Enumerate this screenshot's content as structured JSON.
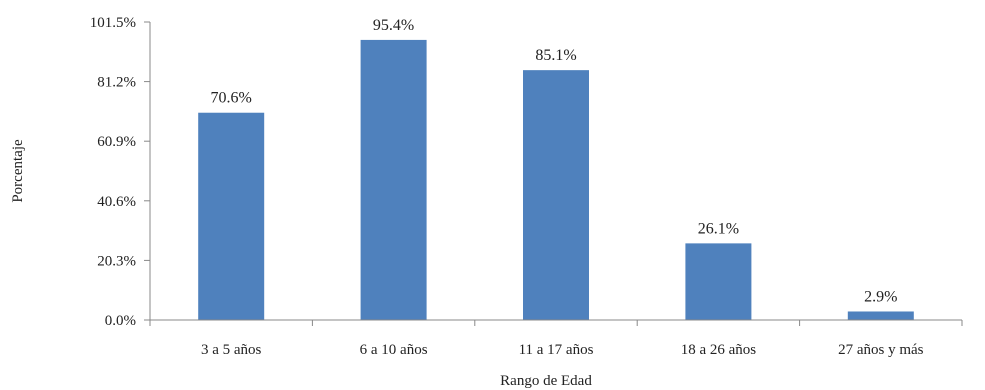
{
  "chart_data": {
    "type": "bar",
    "title": "",
    "xlabel": "Rango de Edad",
    "ylabel": "Porcentaje",
    "categories": [
      "3 a 5 años",
      "6 a 10 años",
      "11 a 17 años",
      "18 a 26 años",
      "27 años y más"
    ],
    "values": [
      70.6,
      95.4,
      85.1,
      26.1,
      2.9
    ],
    "value_labels": [
      "70.6%",
      "95.4%",
      "85.1%",
      "26.1%",
      "2.9%"
    ],
    "ylim": [
      0,
      101.5
    ],
    "yticks": [
      0.0,
      20.3,
      40.6,
      60.9,
      81.2,
      101.5
    ],
    "ytick_labels": [
      "0.0%",
      "20.3%",
      "40.6%",
      "60.9%",
      "81.2%",
      "101.5%"
    ],
    "grid": false,
    "legend": "none",
    "bar_color": "#4f81bd",
    "axis_color": "#888888"
  }
}
